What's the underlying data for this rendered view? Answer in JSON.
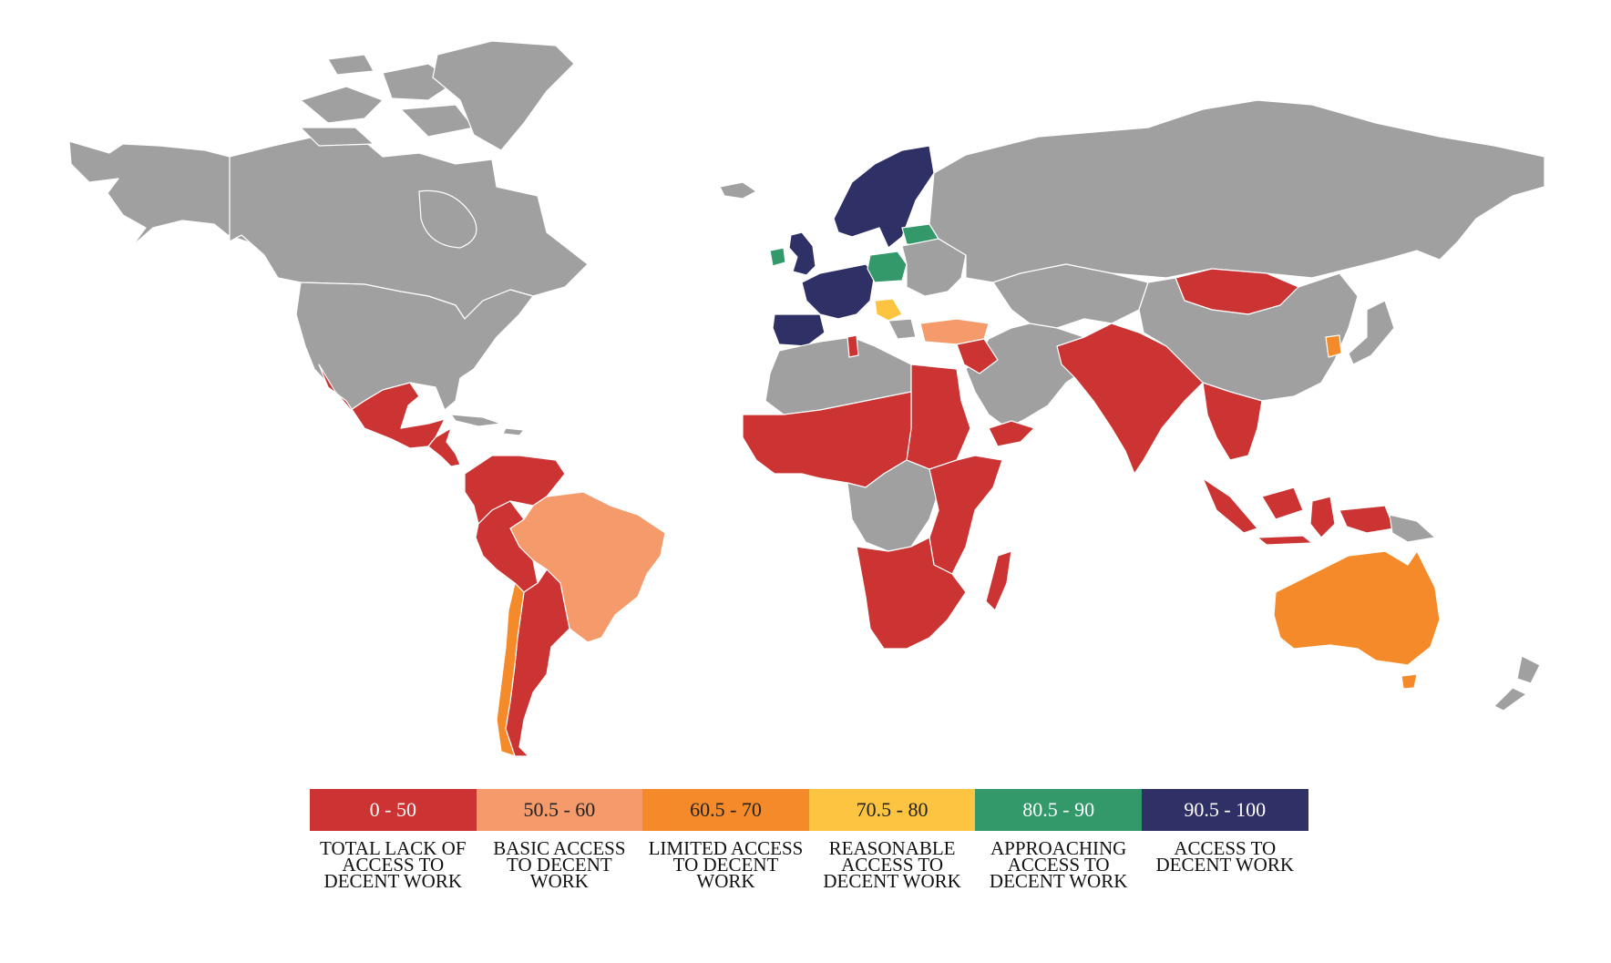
{
  "legend": {
    "categories": [
      {
        "range": "0 - 50",
        "label": "TOTAL LACK OF ACCESS TO DECENT WORK",
        "color": "#cc3333",
        "text_color": "#ffffff"
      },
      {
        "range": "50.5 - 60",
        "label": "BASIC ACCESS TO DECENT WORK",
        "color": "#f59a6a",
        "text_color": "#222222"
      },
      {
        "range": "60.5 - 70",
        "label": "LIMITED ACCESS TO DECENT WORK",
        "color": "#f58a2a",
        "text_color": "#222222"
      },
      {
        "range": "70.5 - 80",
        "label": "REASONABLE ACCESS TO DECENT WORK",
        "color": "#fcc440",
        "text_color": "#222222"
      },
      {
        "range": "80.5 - 90",
        "label": "APPROACHING ACCESS TO DECENT WORK",
        "color": "#33996a",
        "text_color": "#ffffff"
      },
      {
        "range": "90.5 - 100",
        "label": "ACCESS TO DECENT WORK",
        "color": "#2e3066",
        "text_color": "#ffffff"
      }
    ],
    "no_data_color": "#a0a0a0"
  },
  "map": {
    "regions": [
      {
        "name": "canada",
        "category": "none"
      },
      {
        "name": "alaska",
        "category": "none"
      },
      {
        "name": "greenland",
        "category": "none"
      },
      {
        "name": "arctic-islands",
        "category": "none"
      },
      {
        "name": "united-states",
        "category": "none"
      },
      {
        "name": "mexico",
        "category": 0
      },
      {
        "name": "central-america",
        "category": 0
      },
      {
        "name": "caribbean",
        "category": "none"
      },
      {
        "name": "northern-south-america",
        "category": 0
      },
      {
        "name": "brazil",
        "category": 1
      },
      {
        "name": "peru-bolivia",
        "category": 0
      },
      {
        "name": "argentina",
        "category": 0
      },
      {
        "name": "chile",
        "category": 2
      },
      {
        "name": "iceland",
        "category": "none"
      },
      {
        "name": "scandinavia",
        "category": 5
      },
      {
        "name": "western-europe",
        "category": 5
      },
      {
        "name": "iberia",
        "category": 5
      },
      {
        "name": "united-kingdom",
        "category": 5
      },
      {
        "name": "ireland",
        "category": 4
      },
      {
        "name": "poland",
        "category": 4
      },
      {
        "name": "baltics",
        "category": 4
      },
      {
        "name": "balkans",
        "category": 3
      },
      {
        "name": "eastern-europe",
        "category": "none"
      },
      {
        "name": "turkey",
        "category": 1
      },
      {
        "name": "russia",
        "category": "none"
      },
      {
        "name": "central-asia",
        "category": "none"
      },
      {
        "name": "mongolia",
        "category": 0
      },
      {
        "name": "china",
        "category": "none"
      },
      {
        "name": "south-korea",
        "category": 2
      },
      {
        "name": "japan",
        "category": "none"
      },
      {
        "name": "middle-east",
        "category": "none"
      },
      {
        "name": "levant",
        "category": 0
      },
      {
        "name": "yemen",
        "category": 0
      },
      {
        "name": "south-asia",
        "category": 0
      },
      {
        "name": "southeast-asia",
        "category": 0
      },
      {
        "name": "indonesia",
        "category": 0
      },
      {
        "name": "papua-new-guinea",
        "category": "none"
      },
      {
        "name": "north-africa",
        "category": "none"
      },
      {
        "name": "tunisia",
        "category": 0
      },
      {
        "name": "egypt-sudan",
        "category": 0
      },
      {
        "name": "west-africa",
        "category": 0
      },
      {
        "name": "central-africa",
        "category": "none"
      },
      {
        "name": "east-africa",
        "category": 0
      },
      {
        "name": "southern-africa",
        "category": 0
      },
      {
        "name": "madagascar",
        "category": 0
      },
      {
        "name": "australia",
        "category": 2
      },
      {
        "name": "tasmania",
        "category": 2
      },
      {
        "name": "new-zealand",
        "category": "none"
      }
    ]
  }
}
